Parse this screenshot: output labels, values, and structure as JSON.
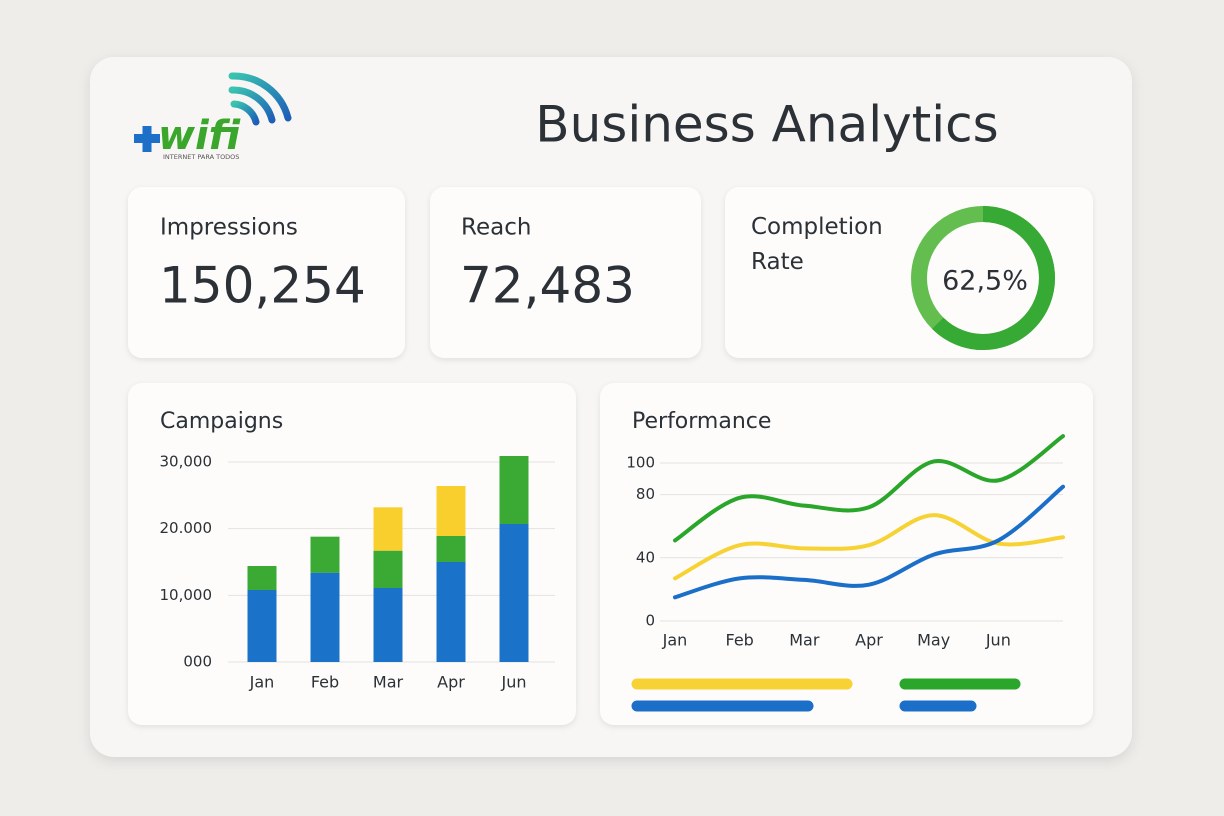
{
  "logo": {
    "name": "wifi",
    "tagline": "INTERNET PARA TODOS"
  },
  "header": {
    "title": "Business Analytics"
  },
  "kpis": [
    {
      "label": "Impressions",
      "value": "150,254"
    },
    {
      "label": "Reach",
      "value": "72,483"
    }
  ],
  "completion": {
    "label": "Completion Rate",
    "value": 62.5,
    "value_label": "62,5%",
    "color": "#37a935",
    "track_color": "#63be4f"
  },
  "chart_data": [
    {
      "type": "bar",
      "stacked": true,
      "title": "Campaigns",
      "categories": [
        "Jan",
        "Feb",
        "Mar",
        "Apr",
        "Jun"
      ],
      "series": [
        {
          "color": "#1a73c8",
          "values": [
            10800,
            13400,
            11100,
            15000,
            20700
          ]
        },
        {
          "color": "#3aaa35",
          "values": [
            3600,
            5400,
            5600,
            3900,
            10200
          ]
        },
        {
          "color": "#f9cf2e",
          "values": [
            0,
            0,
            6500,
            7500,
            0
          ]
        }
      ],
      "ylim": [
        0,
        30000
      ],
      "yticks": [
        {
          "value": 30000,
          "label": "30,000"
        },
        {
          "value": 20000,
          "label": "20.000"
        },
        {
          "value": 10000,
          "label": "10,000"
        },
        {
          "value": 0,
          "label": "000"
        }
      ],
      "grid": true
    },
    {
      "type": "line",
      "title": "Performance",
      "categories": [
        "Jan",
        "Feb",
        "Mar",
        "Apr",
        "May",
        "Jun",
        null
      ],
      "series": [
        {
          "color": "#2aa62a",
          "values": [
            51,
            78,
            73,
            72,
            101,
            89,
            117
          ]
        },
        {
          "color": "#f7d234",
          "values": [
            27,
            48,
            46,
            48,
            67,
            49,
            53
          ]
        },
        {
          "color": "#1b6fc9",
          "values": [
            15,
            27,
            26,
            23,
            42,
            51,
            85
          ]
        }
      ],
      "ylim": [
        0,
        120
      ],
      "yticks": [
        100,
        80,
        40,
        0
      ],
      "grid": true
    }
  ]
}
